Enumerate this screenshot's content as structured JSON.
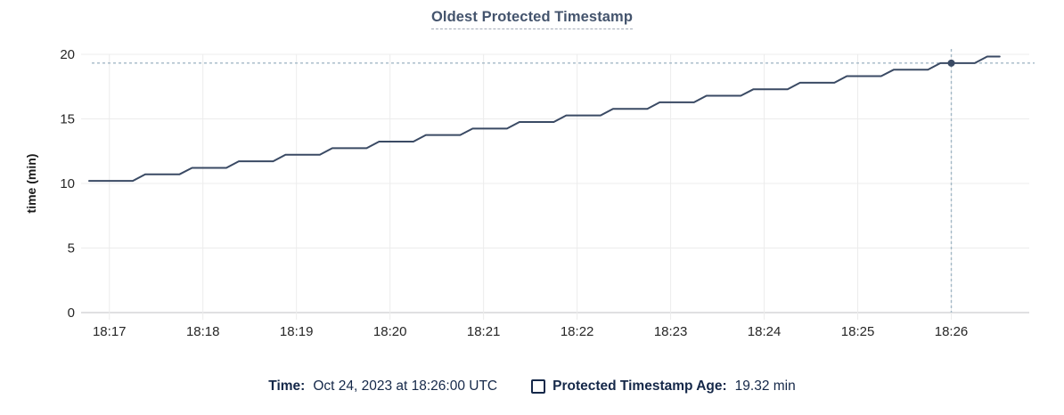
{
  "title": "Oldest Protected Timestamp",
  "legend": {
    "time_label": "Time:",
    "time_value": "Oct 24, 2023 at 18:26:00 UTC",
    "age_label": "Protected Timestamp Age:",
    "age_value": "19.32 min"
  },
  "colors": {
    "line": "#3a4a64",
    "dot": "#3a4a64",
    "crosshair": "#a3b8c6",
    "grid": "#ececec",
    "axis": "#d5d5d8",
    "tick_text": "#262626",
    "title_text": "#44546d",
    "legend_text": "#152849"
  },
  "chart_data": {
    "type": "line",
    "title": "Oldest Protected Timestamp",
    "xlabel": "",
    "ylabel": "time (min)",
    "ylim": [
      0,
      20
    ],
    "y_ticks": [
      0,
      5,
      10,
      15,
      20
    ],
    "x_domain_seconds": [
      -13,
      590
    ],
    "x_ticks": [
      {
        "t": 0,
        "label": "18:17"
      },
      {
        "t": 60,
        "label": "18:18"
      },
      {
        "t": 120,
        "label": "18:19"
      },
      {
        "t": 180,
        "label": "18:20"
      },
      {
        "t": 240,
        "label": "18:21"
      },
      {
        "t": 300,
        "label": "18:22"
      },
      {
        "t": 360,
        "label": "18:23"
      },
      {
        "t": 420,
        "label": "18:24"
      },
      {
        "t": 480,
        "label": "18:25"
      },
      {
        "t": 540,
        "label": "18:26"
      }
    ],
    "grid": true,
    "legend_position": "bottom",
    "series": [
      {
        "name": "Protected Timestamp Age",
        "unit": "min",
        "points": [
          [
            -13,
            10.2
          ],
          [
            15,
            10.2
          ],
          [
            23,
            10.71
          ],
          [
            45,
            10.71
          ],
          [
            53,
            11.21
          ],
          [
            75,
            11.21
          ],
          [
            83,
            11.72
          ],
          [
            105,
            11.72
          ],
          [
            113,
            12.23
          ],
          [
            135,
            12.23
          ],
          [
            143,
            12.73
          ],
          [
            165,
            12.73
          ],
          [
            173,
            13.24
          ],
          [
            195,
            13.24
          ],
          [
            203,
            13.75
          ],
          [
            225,
            13.75
          ],
          [
            233,
            14.25
          ],
          [
            255,
            14.25
          ],
          [
            263,
            14.76
          ],
          [
            285,
            14.76
          ],
          [
            293,
            15.27
          ],
          [
            315,
            15.27
          ],
          [
            323,
            15.77
          ],
          [
            345,
            15.77
          ],
          [
            353,
            16.28
          ],
          [
            375,
            16.28
          ],
          [
            383,
            16.79
          ],
          [
            405,
            16.79
          ],
          [
            413,
            17.29
          ],
          [
            435,
            17.29
          ],
          [
            443,
            17.8
          ],
          [
            465,
            17.8
          ],
          [
            473,
            18.31
          ],
          [
            495,
            18.31
          ],
          [
            503,
            18.81
          ],
          [
            525,
            18.81
          ],
          [
            533,
            19.32
          ],
          [
            555,
            19.32
          ],
          [
            563,
            19.83
          ],
          [
            571,
            19.83
          ]
        ]
      }
    ],
    "highlight_point": {
      "t": 540,
      "time": "18:26:00",
      "value": 19.32,
      "value_label": "19.32 min"
    }
  }
}
